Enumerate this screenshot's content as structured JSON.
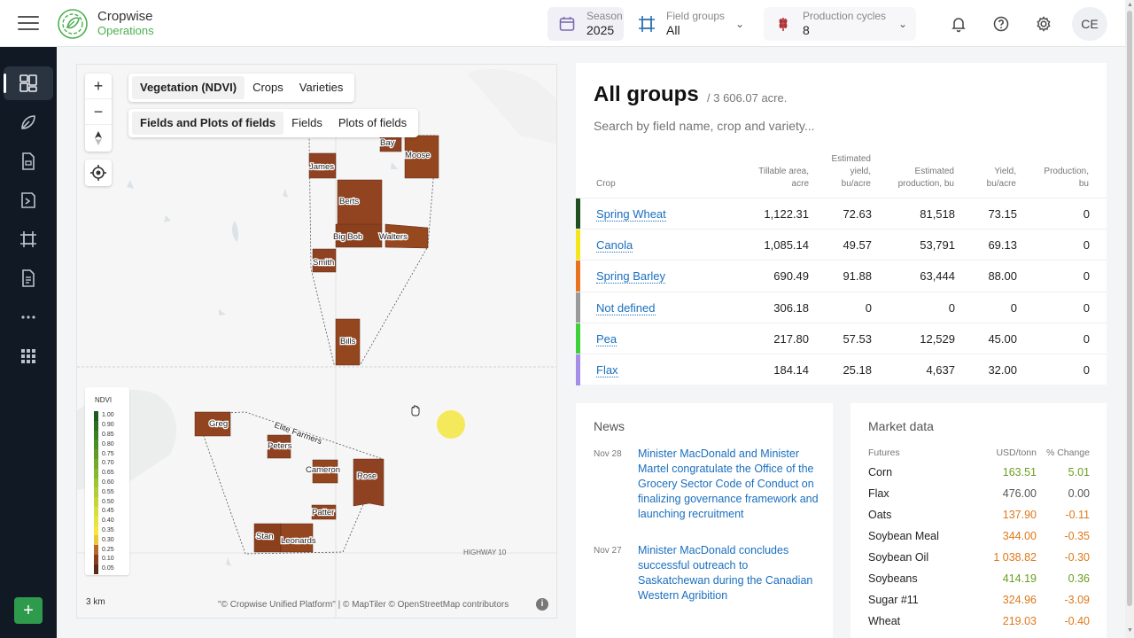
{
  "app": {
    "name_line1": "Cropwise",
    "name_line2": "Operations",
    "brand_color": "#4caf50"
  },
  "header": {
    "season": {
      "label": "Season",
      "value": "2025"
    },
    "field_groups": {
      "label": "Field groups",
      "value": "All"
    },
    "production_cycles": {
      "label": "Production cycles",
      "value": "8"
    },
    "user_initials": "CE",
    "icons": [
      "bell-icon",
      "help-icon",
      "gear-icon"
    ]
  },
  "sidebar": {
    "items": [
      {
        "icon": "dashboard-icon",
        "active": true
      },
      {
        "icon": "crop-leaf-icon",
        "active": false
      },
      {
        "icon": "report-icon",
        "active": false
      },
      {
        "icon": "task-icon",
        "active": false
      },
      {
        "icon": "field-crop-icon",
        "active": false
      },
      {
        "icon": "document-icon",
        "active": false
      },
      {
        "icon": "more-icon",
        "active": false
      },
      {
        "icon": "apps-icon",
        "active": false
      }
    ],
    "add_label": "+"
  },
  "map": {
    "layer_tabs": [
      "Vegetation (NDVI)",
      "Crops",
      "Varieties"
    ],
    "layer_active": "Vegetation (NDVI)",
    "field_tabs": [
      "Fields and Plots of fields",
      "Fields",
      "Plots of fields"
    ],
    "field_active": "Fields and Plots of fields",
    "zoom_in": "+",
    "zoom_out": "−",
    "field_labels": [
      "Bay",
      "Moose",
      "James",
      "Berts",
      "Big Bob",
      "Walters",
      "Smith",
      "Bills",
      "Greg",
      "Elite Farmers",
      "Peters",
      "Cameron",
      "Rose",
      "Patter",
      "Stan",
      "Leonards"
    ],
    "road_label": "HIGHWAY 10",
    "legend": {
      "title": "NDVI",
      "values": [
        "1.00",
        "0.90",
        "0.85",
        "0.80",
        "0.75",
        "0.70",
        "0.65",
        "0.60",
        "0.55",
        "0.50",
        "0.45",
        "0.40",
        "0.35",
        "0.30",
        "0.25",
        "0.10",
        "0.05"
      ],
      "colors": [
        "#1e5c1e",
        "#2b6e22",
        "#3a7f22",
        "#4b8e24",
        "#5d9c26",
        "#72ab2a",
        "#86b82e",
        "#9cc434",
        "#b1cd38",
        "#c5d63c",
        "#d8de40",
        "#e9e342",
        "#f5e63f",
        "#e8c93c",
        "#b46a2c",
        "#8a3e20",
        "#5c2a16"
      ]
    },
    "scale": "3 km",
    "attribution": "\"© Cropwise Unified Platform\" | © MapTiler © OpenStreetMap contributors"
  },
  "groups": {
    "title": "All groups",
    "total": "/ 3 606.07 acre.",
    "search_placeholder": "Search by field name, crop and variety...",
    "columns": [
      {
        "lines": [
          "Crop"
        ]
      },
      {
        "lines": [
          "Tillable area,",
          "acre"
        ]
      },
      {
        "lines": [
          "Estimated",
          "yield,",
          "bu/acre"
        ]
      },
      {
        "lines": [
          "Estimated",
          "production, bu"
        ]
      },
      {
        "lines": [
          "Yield,",
          "bu/acre"
        ]
      },
      {
        "lines": [
          "Production,",
          "bu"
        ]
      }
    ],
    "rows": [
      {
        "crop": "Spring Wheat",
        "color": "#1f4f1f",
        "area": "1,122.31",
        "est_yield": "72.63",
        "est_prod": "81,518",
        "yield": "73.15",
        "prod": "0"
      },
      {
        "crop": "Canola",
        "color": "#f4e61b",
        "area": "1,085.14",
        "est_yield": "49.57",
        "est_prod": "53,791",
        "yield": "69.13",
        "prod": "0"
      },
      {
        "crop": "Spring Barley",
        "color": "#e8731c",
        "area": "690.49",
        "est_yield": "91.88",
        "est_prod": "63,444",
        "yield": "88.00",
        "prod": "0"
      },
      {
        "crop": "Not defined",
        "color": "#9a9a9a",
        "area": "306.18",
        "est_yield": "0",
        "est_prod": "0",
        "yield": "0",
        "prod": "0"
      },
      {
        "crop": "Pea",
        "color": "#3fd13a",
        "area": "217.80",
        "est_yield": "57.53",
        "est_prod": "12,529",
        "yield": "45.00",
        "prod": "0"
      },
      {
        "crop": "Flax",
        "color": "#a48ee8",
        "area": "184.14",
        "est_yield": "25.18",
        "est_prod": "4,637",
        "yield": "32.00",
        "prod": "0"
      }
    ]
  },
  "news": {
    "title": "News",
    "items": [
      {
        "date": "Nov 28",
        "text": "Minister MacDonald and Minister Martel congratulate the Office of the Grocery Sector Code of Conduct on finalizing governance framework and launching recruitment"
      },
      {
        "date": "Nov 27",
        "text": "Minister MacDonald concludes successful outreach to Saskatchewan during the Canadian Western Agribition"
      }
    ]
  },
  "market": {
    "title": "Market data",
    "headers": {
      "name": "Futures",
      "price": "USD/tonn",
      "change": "% Change"
    },
    "colors": {
      "up": "#6a9e1f",
      "down": "#e0781a",
      "flat": "#555555"
    },
    "rows": [
      {
        "name": "Corn",
        "price": "163.51",
        "change": "5.01",
        "trend": "up"
      },
      {
        "name": "Flax",
        "price": "476.00",
        "change": "0.00",
        "trend": "flat"
      },
      {
        "name": "Oats",
        "price": "137.90",
        "change": "-0.11",
        "trend": "down"
      },
      {
        "name": "Soybean Meal",
        "price": "344.00",
        "change": "-0.35",
        "trend": "down"
      },
      {
        "name": "Soybean Oil",
        "price": "1 038.82",
        "change": "-0.30",
        "trend": "down"
      },
      {
        "name": "Soybeans",
        "price": "414.19",
        "change": "0.36",
        "trend": "up"
      },
      {
        "name": "Sugar #11",
        "price": "324.96",
        "change": "-3.09",
        "trend": "down"
      },
      {
        "name": "Wheat",
        "price": "219.03",
        "change": "-0.40",
        "trend": "down"
      }
    ]
  }
}
